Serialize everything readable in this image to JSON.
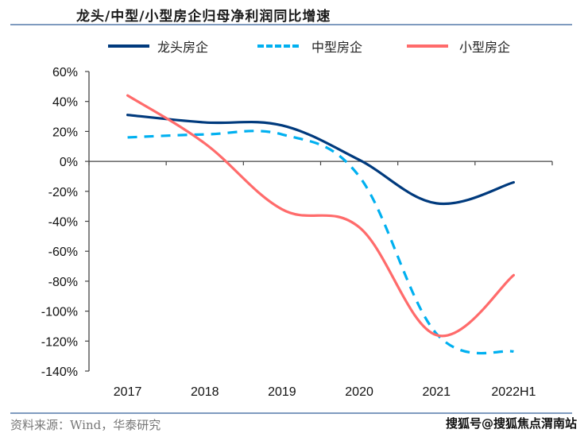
{
  "header": {
    "title": "龙头/中型/小型房企归母净利润同比增速"
  },
  "footer": {
    "source": "资料来源：Wind，华泰研究",
    "watermark": "搜狐号@搜狐焦点渭南站"
  },
  "colors": {
    "leader": "#003a7d",
    "mid": "#00b0f0",
    "small": "#ff6b6b",
    "rule": "#7f9bbf",
    "axis": "#444444"
  },
  "chart_data": {
    "type": "line",
    "title": "龙头/中型/小型房企归母净利润同比增速",
    "xlabel": "",
    "ylabel": "",
    "categories": [
      "2017",
      "2018",
      "2019",
      "2020",
      "2021",
      "2022H1"
    ],
    "ylim": [
      -140,
      60
    ],
    "yticks": [
      60,
      40,
      20,
      0,
      -20,
      -40,
      -60,
      -80,
      -100,
      -120,
      -140
    ],
    "ytick_labels": [
      "60%",
      "40%",
      "20%",
      "0%",
      "-20%",
      "-40%",
      "-60%",
      "-80%",
      "-100%",
      "-120%",
      "-140%"
    ],
    "grid": false,
    "legend_position": "top",
    "smooth": true,
    "series": [
      {
        "name": "龙头房企",
        "style": "solid",
        "color": "#003a7d",
        "values": [
          31,
          26,
          24,
          1,
          -28,
          -14
        ]
      },
      {
        "name": "中型房企",
        "style": "dashed",
        "color": "#00b0f0",
        "values": [
          16,
          18,
          18,
          -10,
          -115,
          -127
        ]
      },
      {
        "name": "小型房企",
        "style": "solid",
        "color": "#ff6b6b",
        "values": [
          44,
          12,
          -32,
          -44,
          -116,
          -76
        ]
      }
    ]
  }
}
